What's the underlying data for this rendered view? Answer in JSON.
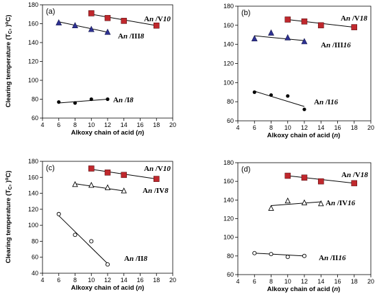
{
  "chart_data": [
    {
      "type": "scatter",
      "panel_label": "(a)",
      "xlabel": "Alkoxy chain of acid (n)",
      "ylabel": "Clearing temperature (Tc, oC)",
      "xlim": [
        4,
        20
      ],
      "ylim": [
        60,
        180
      ],
      "xticks": [
        4,
        6,
        8,
        10,
        12,
        14,
        16,
        18,
        20
      ],
      "yticks": [
        60,
        80,
        100,
        120,
        140,
        160,
        180
      ],
      "series": [
        {
          "name": "An/V10",
          "marker": "square",
          "color": "#c0282d",
          "x": [
            10,
            12,
            14,
            18
          ],
          "y": [
            171,
            166,
            163,
            158
          ],
          "fit": [
            [
              10,
              170
            ],
            [
              18,
              158
            ]
          ]
        },
        {
          "name": "An/III8",
          "marker": "triangle",
          "color": "#2e3192",
          "x": [
            6,
            8,
            10,
            12
          ],
          "y": [
            161,
            158,
            154,
            151
          ],
          "fit": [
            [
              6,
              162
            ],
            [
              12,
              151
            ]
          ]
        },
        {
          "name": "An/I8",
          "marker": "circle-filled",
          "color": "#000000",
          "x": [
            6,
            8,
            10,
            12
          ],
          "y": [
            77,
            76,
            80,
            80
          ],
          "fit": [
            [
              6,
              76
            ],
            [
              12,
              80
            ]
          ]
        }
      ]
    },
    {
      "type": "scatter",
      "panel_label": "(b)",
      "xlabel": "Alkoxy chain of acid (n)",
      "ylabel": "",
      "xlim": [
        4,
        20
      ],
      "ylim": [
        60,
        180
      ],
      "xticks": [
        4,
        6,
        8,
        10,
        12,
        14,
        16,
        18,
        20
      ],
      "yticks": [
        60,
        80,
        100,
        120,
        140,
        160,
        180
      ],
      "series": [
        {
          "name": "An/V18",
          "marker": "square",
          "color": "#c0282d",
          "x": [
            10,
            12,
            14,
            18
          ],
          "y": [
            166,
            164,
            160,
            158
          ],
          "fit": [
            [
              10,
              166
            ],
            [
              18,
              158
            ]
          ]
        },
        {
          "name": "An/III16",
          "marker": "triangle",
          "color": "#2e3192",
          "x": [
            6,
            8,
            10,
            12
          ],
          "y": [
            146,
            152,
            147,
            143
          ],
          "fit": [
            [
              6,
              149
            ],
            [
              12,
              144
            ]
          ]
        },
        {
          "name": "An/I16",
          "marker": "circle-filled",
          "color": "#000000",
          "x": [
            6,
            8,
            10,
            12
          ],
          "y": [
            90,
            87,
            86,
            72
          ],
          "fit": [
            [
              6,
              91
            ],
            [
              12,
              75
            ]
          ]
        }
      ]
    },
    {
      "type": "scatter",
      "panel_label": "(c)",
      "xlabel": "Alkoxy chain of acid (n)",
      "ylabel": "Clearing temperature (Tc, oC)",
      "xlim": [
        4,
        20
      ],
      "ylim": [
        40,
        180
      ],
      "xticks": [
        4,
        6,
        8,
        10,
        12,
        14,
        16,
        18,
        20
      ],
      "yticks": [
        40,
        60,
        80,
        100,
        120,
        140,
        160,
        180
      ],
      "series": [
        {
          "name": "An/V10",
          "marker": "square",
          "color": "#c0282d",
          "x": [
            10,
            12,
            14,
            18
          ],
          "y": [
            171,
            166,
            163,
            158
          ],
          "fit": [
            [
              10,
              170
            ],
            [
              18,
              158
            ]
          ]
        },
        {
          "name": "An/IV8",
          "marker": "triangle-open",
          "color": "#000000",
          "x": [
            8,
            10,
            12,
            14
          ],
          "y": [
            151,
            150,
            147,
            143
          ],
          "fit": [
            [
              8,
              152
            ],
            [
              14,
              143
            ]
          ]
        },
        {
          "name": "An/II8",
          "marker": "circle-open",
          "color": "#000000",
          "x": [
            6,
            8,
            10,
            12
          ],
          "y": [
            114,
            88,
            80,
            51
          ],
          "fit": [
            [
              6,
              112
            ],
            [
              12,
              52
            ]
          ]
        }
      ]
    },
    {
      "type": "scatter",
      "panel_label": "(d)",
      "xlabel": "Alkoxy chain of acid (n)",
      "ylabel": "",
      "xlim": [
        4,
        20
      ],
      "ylim": [
        60,
        180
      ],
      "xticks": [
        4,
        6,
        8,
        10,
        12,
        14,
        16,
        18,
        20
      ],
      "yticks": [
        60,
        80,
        100,
        120,
        140,
        160,
        180
      ],
      "series": [
        {
          "name": "An/V18",
          "marker": "square",
          "color": "#c0282d",
          "x": [
            10,
            12,
            14,
            18
          ],
          "y": [
            166,
            164,
            160,
            158
          ],
          "fit": [
            [
              10,
              166
            ],
            [
              18,
              158
            ]
          ]
        },
        {
          "name": "An/IV16",
          "marker": "triangle-open",
          "color": "#000000",
          "x": [
            8,
            10,
            12,
            14
          ],
          "y": [
            131,
            139,
            137,
            136
          ],
          "fit": [
            [
              8,
              134
            ],
            [
              14,
              138
            ]
          ]
        },
        {
          "name": "An/II16",
          "marker": "circle-open",
          "color": "#000000",
          "x": [
            6,
            8,
            10,
            12
          ],
          "y": [
            83,
            82,
            79,
            80
          ],
          "fit": [
            [
              6,
              83
            ],
            [
              12,
              80
            ]
          ]
        }
      ]
    }
  ]
}
